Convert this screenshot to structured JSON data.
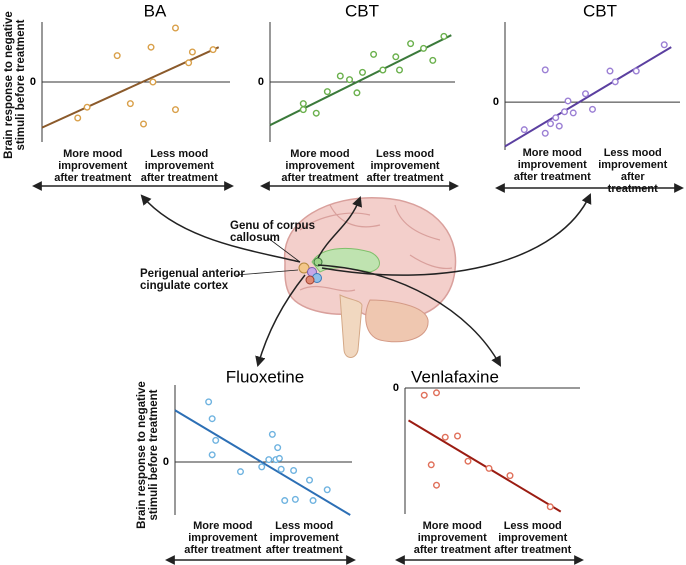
{
  "chart_data": [
    {
      "type": "scatter",
      "title": "BA",
      "y_label": "Brain response to negative\nstimuli before treatment",
      "x_axis_labels": [
        "More mood\nimprovement\nafter treatment",
        "Less mood\nimprovement\nafter treatment"
      ],
      "xlim": [
        0,
        10
      ],
      "ylim": [
        -5,
        5
      ],
      "yticks": [
        0
      ],
      "point_color": "#d9a04a",
      "line_color": "#8b5a2b",
      "x": [
        1.9,
        2.4,
        4.0,
        4.7,
        5.4,
        5.8,
        5.9,
        7.1,
        7.1,
        7.8,
        8.0,
        9.1
      ],
      "y": [
        -3.0,
        -2.1,
        2.2,
        -1.8,
        -3.5,
        2.9,
        0,
        4.5,
        -2.3,
        1.6,
        2.5,
        2.7
      ],
      "trend": {
        "x": [
          0,
          9.4
        ],
        "y": [
          -3.8,
          2.9
        ]
      }
    },
    {
      "type": "scatter",
      "title": "CBT",
      "x_axis_labels": [
        "More mood\nimprovement\nafter treatment",
        "Less mood\nimprovement\nafter treatment"
      ],
      "xlim": [
        0,
        10
      ],
      "ylim": [
        -5,
        5
      ],
      "yticks": [
        0
      ],
      "point_color": "#6ab04c",
      "line_color": "#3b7a3b",
      "x": [
        1.8,
        1.8,
        2.5,
        3.1,
        3.8,
        4.3,
        4.7,
        5.0,
        5.6,
        6.1,
        6.8,
        7.0,
        7.6,
        8.3,
        8.8,
        9.4
      ],
      "y": [
        -1.8,
        -2.3,
        -2.6,
        -0.8,
        0.5,
        0.2,
        -0.9,
        0.8,
        2.3,
        1.0,
        2.1,
        1.0,
        3.2,
        2.8,
        1.8,
        3.8
      ],
      "trend": {
        "x": [
          0,
          9.8
        ],
        "y": [
          -3.6,
          3.9
        ]
      }
    },
    {
      "type": "scatter",
      "title": "CBT",
      "x_axis_labels": [
        "More mood\nimprovement\nafter treatment",
        "Less mood\nimprovement\nafter treatment"
      ],
      "xlim": [
        0,
        10
      ],
      "ylim": [
        -4,
        6.7
      ],
      "yticks": [
        0
      ],
      "point_color": "#9b7fd4",
      "line_color": "#5b3fa0",
      "x": [
        1.1,
        2.3,
        2.3,
        2.6,
        2.9,
        3.1,
        3.4,
        3.6,
        3.9,
        4.6,
        5.0,
        6.0,
        6.3,
        7.5,
        9.1
      ],
      "y": [
        -2.3,
        2.7,
        -2.6,
        -1.8,
        -1.3,
        -2.0,
        -0.8,
        0.1,
        -0.9,
        0.7,
        -0.6,
        2.6,
        1.7,
        2.6,
        4.8
      ],
      "trend": {
        "x": [
          0,
          9.5
        ],
        "y": [
          -3.7,
          4.6
        ]
      }
    },
    {
      "type": "scatter",
      "title": "Fluoxetine",
      "y_label": "Brain response to negative\nstimuli before treatment",
      "x_axis_labels": [
        "More mood\nimprovement\nafter treatment",
        "Less mood\nimprovement\nafter treatment"
      ],
      "xlim": [
        0,
        10
      ],
      "ylim": [
        -4.4,
        6.4
      ],
      "yticks": [
        0
      ],
      "point_color": "#6fb3e0",
      "line_color": "#2c6fb5",
      "x": [
        1.9,
        2.1,
        2.3,
        2.1,
        3.7,
        4.9,
        5.3,
        5.5,
        5.7,
        5.9,
        5.8,
        6.0,
        6.7,
        6.2,
        6.8,
        7.6,
        7.8,
        8.6
      ],
      "y": [
        5.0,
        3.6,
        1.8,
        0.6,
        -0.8,
        -0.4,
        0.2,
        2.3,
        0.2,
        0.3,
        1.2,
        -0.6,
        -0.7,
        -3.2,
        -3.1,
        -1.5,
        -3.2,
        -2.3
      ],
      "trend": {
        "x": [
          0,
          9.9
        ],
        "y": [
          4.3,
          -4.4
        ]
      }
    },
    {
      "type": "scatter",
      "title": "Venlafaxine",
      "x_axis_labels": [
        "More mood\nimprovement\nafter treatment",
        "Less mood\nimprovement\nafter treatment"
      ],
      "xlim": [
        0,
        10
      ],
      "ylim": [
        -10.5,
        0
      ],
      "yticks": [
        0
      ],
      "point_color": "#e0705a",
      "line_color": "#9b1c12",
      "x": [
        1.1,
        1.8,
        2.3,
        3.0,
        1.5,
        1.8,
        3.6,
        4.8,
        6.0,
        8.3
      ],
      "y": [
        -0.6,
        -0.4,
        -4.1,
        -4.0,
        -6.4,
        -8.1,
        -6.1,
        -6.7,
        -7.3,
        -9.9
      ],
      "trend": {
        "x": [
          0.2,
          8.9
        ],
        "y": [
          -2.7,
          -10.3
        ]
      }
    }
  ],
  "annotations": [
    "Genu of corpus\ncallosum",
    "Perigenual anterior\ncingulate cortex"
  ]
}
